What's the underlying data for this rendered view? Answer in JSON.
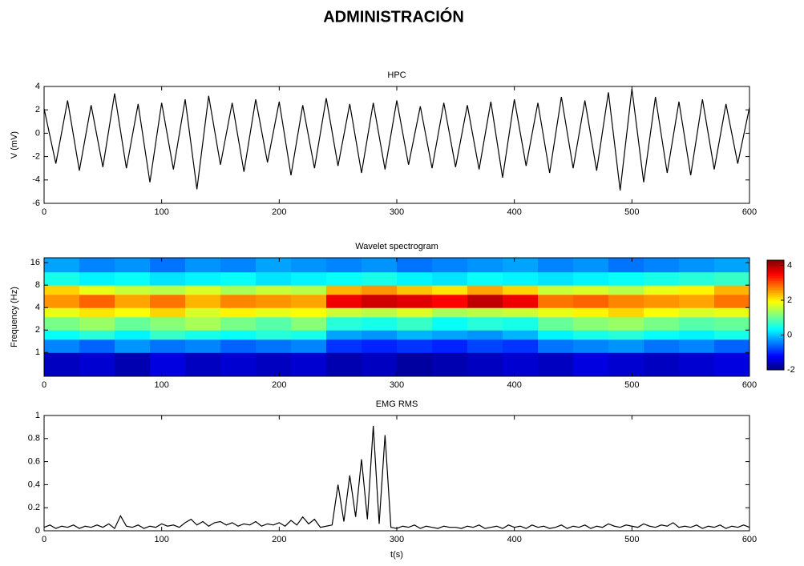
{
  "title": "ADMINISTRACIÓN",
  "chart_data": [
    {
      "type": "line",
      "title": "HPC",
      "ylabel": "V (mV)",
      "color": "#000000",
      "x": [
        0,
        10,
        20,
        30,
        40,
        50,
        60,
        70,
        80,
        90,
        100,
        110,
        120,
        130,
        140,
        150,
        160,
        170,
        180,
        190,
        200,
        210,
        220,
        230,
        240,
        250,
        260,
        270,
        280,
        290,
        300,
        310,
        320,
        330,
        340,
        350,
        360,
        370,
        380,
        390,
        400,
        410,
        420,
        430,
        440,
        450,
        460,
        470,
        480,
        490,
        500,
        510,
        520,
        530,
        540,
        550,
        560,
        570,
        580,
        590,
        600
      ],
      "values": [
        2.1,
        -2.6,
        2.8,
        -3.2,
        2.4,
        -2.9,
        3.4,
        -3.0,
        2.5,
        -4.2,
        2.6,
        -3.1,
        2.9,
        -4.8,
        3.2,
        -2.7,
        2.6,
        -3.3,
        2.9,
        -2.5,
        2.7,
        -3.6,
        2.4,
        -3.0,
        3.0,
        -2.8,
        2.5,
        -3.4,
        2.6,
        -3.1,
        2.8,
        -2.7,
        2.3,
        -3.0,
        2.6,
        -2.9,
        2.4,
        -3.1,
        2.7,
        -3.8,
        2.9,
        -2.8,
        2.6,
        -3.4,
        3.1,
        -3.0,
        2.8,
        -3.2,
        3.5,
        -4.9,
        3.8,
        -4.2,
        3.1,
        -3.4,
        2.7,
        -3.6,
        2.9,
        -3.1,
        2.5,
        -2.6,
        2.2
      ],
      "xlim": [
        0,
        600
      ],
      "xticks": [
        0,
        100,
        200,
        300,
        400,
        500,
        600
      ],
      "ylim": [
        -6,
        4
      ],
      "yticks": [
        -6,
        -4,
        -2,
        0,
        2,
        4
      ]
    },
    {
      "type": "heatmap",
      "title": "Wavelet spectrogram",
      "ylabel": "Frequency (Hz)",
      "log_y": true,
      "x_edges": [
        0,
        30,
        60,
        90,
        120,
        150,
        180,
        210,
        240,
        270,
        300,
        330,
        360,
        390,
        420,
        450,
        480,
        510,
        540,
        570,
        600
      ],
      "y_edges": [
        0.48,
        1,
        1.5,
        2,
        3,
        4,
        6,
        8,
        12,
        18.6
      ],
      "values": [
        [
          -1.6,
          -1.5,
          -1.7,
          -1.4,
          -1.6,
          -1.5,
          -1.6,
          -1.5,
          -1.7,
          -1.6,
          -1.8,
          -1.7,
          -1.6,
          -1.5,
          -1.6,
          -1.4,
          -1.5,
          -1.6,
          -1.5,
          -1.4
        ],
        [
          -0.4,
          -0.6,
          -0.3,
          -0.5,
          -0.4,
          -0.6,
          -0.5,
          -0.4,
          -0.9,
          -1.0,
          -0.9,
          -1.0,
          -0.8,
          -0.9,
          -0.5,
          -0.4,
          -0.3,
          -0.5,
          -0.4,
          -0.6
        ],
        [
          0.4,
          0.6,
          0.3,
          0.7,
          0.5,
          0.4,
          0.6,
          0.5,
          -0.2,
          -0.3,
          -0.1,
          -0.2,
          -0.3,
          -0.1,
          0.3,
          0.5,
          0.6,
          0.4,
          0.3,
          0.5
        ],
        [
          1.1,
          1.3,
          1.0,
          1.2,
          1.4,
          1.1,
          0.9,
          1.2,
          0.6,
          0.5,
          0.7,
          0.4,
          0.6,
          0.5,
          1.0,
          1.2,
          1.3,
          1.1,
          0.9,
          1.0
        ],
        [
          1.8,
          2.1,
          1.9,
          2.2,
          1.7,
          2.0,
          1.8,
          1.9,
          1.6,
          1.5,
          1.7,
          1.4,
          1.5,
          1.6,
          1.8,
          2.0,
          2.2,
          1.9,
          1.7,
          1.8
        ],
        [
          2.6,
          2.9,
          2.5,
          2.8,
          2.4,
          2.7,
          2.6,
          2.5,
          3.6,
          3.8,
          3.7,
          3.5,
          3.9,
          3.6,
          2.8,
          2.9,
          2.7,
          2.6,
          2.5,
          2.8
        ],
        [
          2.2,
          1.8,
          1.6,
          1.5,
          1.7,
          1.4,
          1.6,
          1.5,
          2.4,
          2.6,
          2.3,
          2.1,
          2.5,
          2.2,
          1.6,
          1.7,
          1.5,
          1.8,
          2.0,
          2.4
        ],
        [
          0.5,
          0.3,
          0.4,
          0.2,
          0.3,
          0.4,
          0.2,
          0.3,
          0.4,
          0.5,
          0.3,
          0.2,
          0.4,
          0.3,
          0.2,
          0.3,
          0.4,
          0.5,
          0.6,
          0.7
        ],
        [
          -0.2,
          -0.4,
          -0.3,
          -0.5,
          -0.3,
          -0.4,
          -0.2,
          -0.3,
          -0.4,
          -0.3,
          -0.5,
          -0.4,
          -0.3,
          -0.2,
          -0.4,
          -0.3,
          -0.5,
          -0.4,
          -0.3,
          -0.2
        ]
      ],
      "xlim": [
        0,
        600
      ],
      "xticks": [
        0,
        100,
        200,
        300,
        400,
        500,
        600
      ],
      "ylim": [
        0.48,
        18.6
      ],
      "yticks": [
        1,
        2,
        4,
        8,
        16
      ],
      "clim": [
        -2,
        4.3
      ],
      "cticks": [
        -2,
        0,
        2,
        4
      ],
      "colormap": "jet"
    },
    {
      "type": "line",
      "title": "EMG RMS",
      "xlabel": "t(s)",
      "color": "#000000",
      "x": [
        0,
        5,
        10,
        15,
        20,
        25,
        30,
        35,
        40,
        45,
        50,
        55,
        60,
        65,
        70,
        75,
        80,
        85,
        90,
        95,
        100,
        105,
        110,
        115,
        120,
        125,
        130,
        135,
        140,
        145,
        150,
        155,
        160,
        165,
        170,
        175,
        180,
        185,
        190,
        195,
        200,
        205,
        210,
        215,
        220,
        225,
        230,
        235,
        240,
        245,
        250,
        255,
        260,
        265,
        270,
        275,
        280,
        285,
        290,
        295,
        300,
        305,
        310,
        315,
        320,
        325,
        330,
        335,
        340,
        345,
        350,
        355,
        360,
        365,
        370,
        375,
        380,
        385,
        390,
        395,
        400,
        405,
        410,
        415,
        420,
        425,
        430,
        435,
        440,
        445,
        450,
        455,
        460,
        465,
        470,
        475,
        480,
        485,
        490,
        495,
        500,
        505,
        510,
        515,
        520,
        525,
        530,
        535,
        540,
        545,
        550,
        555,
        560,
        565,
        570,
        575,
        580,
        585,
        590,
        595,
        600
      ],
      "values": [
        0.03,
        0.05,
        0.02,
        0.04,
        0.03,
        0.05,
        0.02,
        0.04,
        0.03,
        0.05,
        0.03,
        0.06,
        0.02,
        0.13,
        0.04,
        0.03,
        0.05,
        0.02,
        0.04,
        0.03,
        0.06,
        0.04,
        0.05,
        0.03,
        0.07,
        0.1,
        0.05,
        0.08,
        0.04,
        0.07,
        0.08,
        0.05,
        0.07,
        0.04,
        0.06,
        0.05,
        0.08,
        0.04,
        0.06,
        0.05,
        0.07,
        0.04,
        0.09,
        0.05,
        0.12,
        0.06,
        0.1,
        0.03,
        0.04,
        0.05,
        0.4,
        0.08,
        0.48,
        0.12,
        0.62,
        0.1,
        0.91,
        0.06,
        0.83,
        0.03,
        0.02,
        0.04,
        0.03,
        0.05,
        0.02,
        0.04,
        0.03,
        0.02,
        0.04,
        0.03,
        0.03,
        0.02,
        0.04,
        0.03,
        0.05,
        0.02,
        0.03,
        0.04,
        0.02,
        0.05,
        0.03,
        0.04,
        0.02,
        0.05,
        0.03,
        0.04,
        0.02,
        0.03,
        0.05,
        0.02,
        0.04,
        0.03,
        0.05,
        0.02,
        0.04,
        0.03,
        0.06,
        0.04,
        0.03,
        0.05,
        0.04,
        0.03,
        0.06,
        0.04,
        0.03,
        0.05,
        0.04,
        0.07,
        0.03,
        0.04,
        0.03,
        0.05,
        0.02,
        0.04,
        0.03,
        0.05,
        0.02,
        0.04,
        0.03,
        0.05,
        0.03
      ],
      "xlim": [
        0,
        600
      ],
      "xticks": [
        0,
        100,
        200,
        300,
        400,
        500,
        600
      ],
      "ylim": [
        0,
        1
      ],
      "yticks": [
        0,
        0.2,
        0.4,
        0.6,
        0.8,
        1
      ]
    }
  ]
}
